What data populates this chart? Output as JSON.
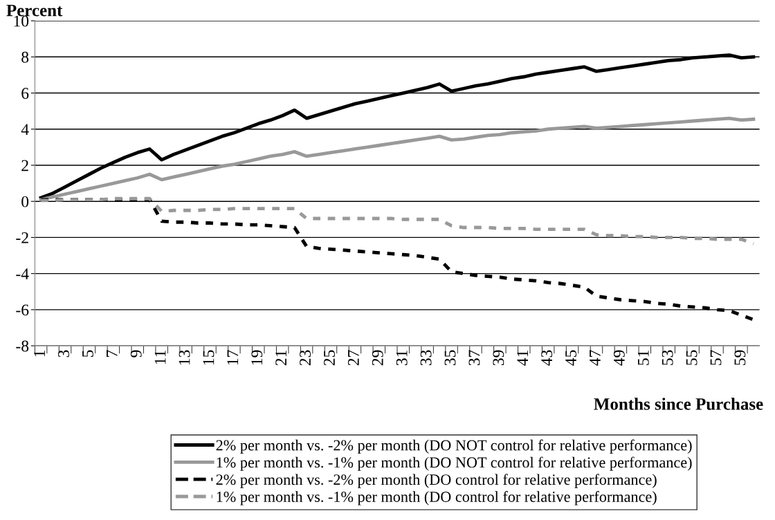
{
  "chart_data": {
    "type": "line",
    "ylabel": "Percent",
    "xlabel": "Months since Purchase",
    "categories": [
      "1",
      null,
      "3",
      null,
      "5",
      null,
      "7",
      null,
      "9",
      null,
      "11",
      null,
      "13",
      null,
      "15",
      null,
      "17",
      null,
      "19",
      null,
      "21",
      null,
      "23",
      null,
      "25",
      null,
      "27",
      null,
      "29",
      null,
      "31",
      null,
      "33",
      null,
      "35",
      null,
      "37",
      null,
      "39",
      null,
      "41",
      null,
      "43",
      null,
      "45",
      null,
      "47",
      null,
      "49",
      null,
      "51",
      null,
      "53",
      null,
      "55",
      null,
      "57",
      null,
      "59",
      null
    ],
    "ylim": [
      -8,
      10
    ],
    "yticks": [
      {
        "value": -8,
        "label": "-8"
      },
      {
        "value": -6,
        "label": "-6"
      },
      {
        "value": -4,
        "label": "-4"
      },
      {
        "value": -2,
        "label": "-2"
      },
      0,
      2,
      4,
      6,
      8,
      10
    ],
    "grid": "y",
    "legend": "bottom",
    "marker": "none",
    "series": [
      {
        "name": "2% per month vs. -2% per month (DO NOT control for relative performance)",
        "color": "#000000",
        "line_style": "solid",
        "values": [
          0.2,
          0.45,
          0.8,
          1.15,
          1.5,
          1.85,
          2.15,
          2.45,
          2.7,
          2.9,
          2.3,
          2.6,
          2.85,
          3.1,
          3.35,
          3.6,
          3.8,
          4.05,
          4.3,
          4.5,
          4.75,
          5.05,
          4.6,
          4.8,
          5.0,
          5.2,
          5.4,
          5.55,
          5.7,
          5.85,
          6.0,
          6.15,
          6.3,
          6.5,
          6.1,
          6.25,
          6.4,
          6.5,
          6.65,
          6.8,
          6.9,
          7.05,
          7.15,
          7.25,
          7.35,
          7.45,
          7.2,
          7.3,
          7.4,
          7.5,
          7.6,
          7.7,
          7.8,
          7.85,
          7.95,
          8.0,
          8.05,
          8.1,
          7.95,
          8.0
        ]
      },
      {
        "name": "1% per month vs. -1% per month (DO NOT control for relative performance)",
        "color": "#999999",
        "line_style": "solid",
        "values": [
          0.1,
          0.25,
          0.4,
          0.55,
          0.7,
          0.85,
          1.0,
          1.15,
          1.3,
          1.5,
          1.2,
          1.35,
          1.5,
          1.65,
          1.8,
          1.95,
          2.05,
          2.2,
          2.35,
          2.5,
          2.6,
          2.75,
          2.5,
          2.6,
          2.7,
          2.8,
          2.9,
          3.0,
          3.1,
          3.2,
          3.3,
          3.4,
          3.5,
          3.6,
          3.4,
          3.45,
          3.55,
          3.65,
          3.7,
          3.8,
          3.85,
          3.9,
          4.0,
          4.05,
          4.1,
          4.15,
          4.05,
          4.1,
          4.15,
          4.2,
          4.25,
          4.3,
          4.35,
          4.4,
          4.45,
          4.5,
          4.55,
          4.6,
          4.5,
          4.55
        ]
      },
      {
        "name": "2% per month vs. -2% per month (DO control for relative performance)",
        "color": "#000000",
        "line_style": "dashed",
        "values": [
          0.1,
          0.1,
          0.1,
          0.1,
          0.1,
          0.1,
          0.1,
          0.1,
          0.1,
          0.1,
          -1.1,
          -1.15,
          -1.15,
          -1.2,
          -1.2,
          -1.25,
          -1.25,
          -1.3,
          -1.3,
          -1.35,
          -1.4,
          -1.45,
          -2.5,
          -2.6,
          -2.65,
          -2.7,
          -2.75,
          -2.8,
          -2.85,
          -2.9,
          -2.95,
          -3.0,
          -3.1,
          -3.2,
          -3.9,
          -4.0,
          -4.1,
          -4.15,
          -4.2,
          -4.3,
          -4.35,
          -4.4,
          -4.5,
          -4.55,
          -4.65,
          -4.75,
          -5.25,
          -5.35,
          -5.45,
          -5.5,
          -5.55,
          -5.65,
          -5.7,
          -5.8,
          -5.85,
          -5.9,
          -6.0,
          -6.05,
          -6.3,
          -6.55
        ]
      },
      {
        "name": "1% per month vs. -1% per month (DO control for relative performance)",
        "color": "#999999",
        "line_style": "dashed",
        "values": [
          0.05,
          0.05,
          0.1,
          0.1,
          0.1,
          0.1,
          0.15,
          0.15,
          0.15,
          0.15,
          -0.55,
          -0.5,
          -0.5,
          -0.5,
          -0.45,
          -0.45,
          -0.4,
          -0.4,
          -0.4,
          -0.4,
          -0.4,
          -0.4,
          -0.95,
          -0.95,
          -0.95,
          -0.95,
          -0.95,
          -0.95,
          -0.95,
          -0.95,
          -1.0,
          -1.0,
          -1.0,
          -1.0,
          -1.35,
          -1.45,
          -1.45,
          -1.45,
          -1.5,
          -1.5,
          -1.5,
          -1.55,
          -1.55,
          -1.55,
          -1.55,
          -1.55,
          -1.85,
          -1.9,
          -1.9,
          -1.95,
          -1.95,
          -2.0,
          -2.0,
          -2.0,
          -2.05,
          -2.05,
          -2.1,
          -2.1,
          -2.1,
          -2.35
        ]
      }
    ]
  }
}
